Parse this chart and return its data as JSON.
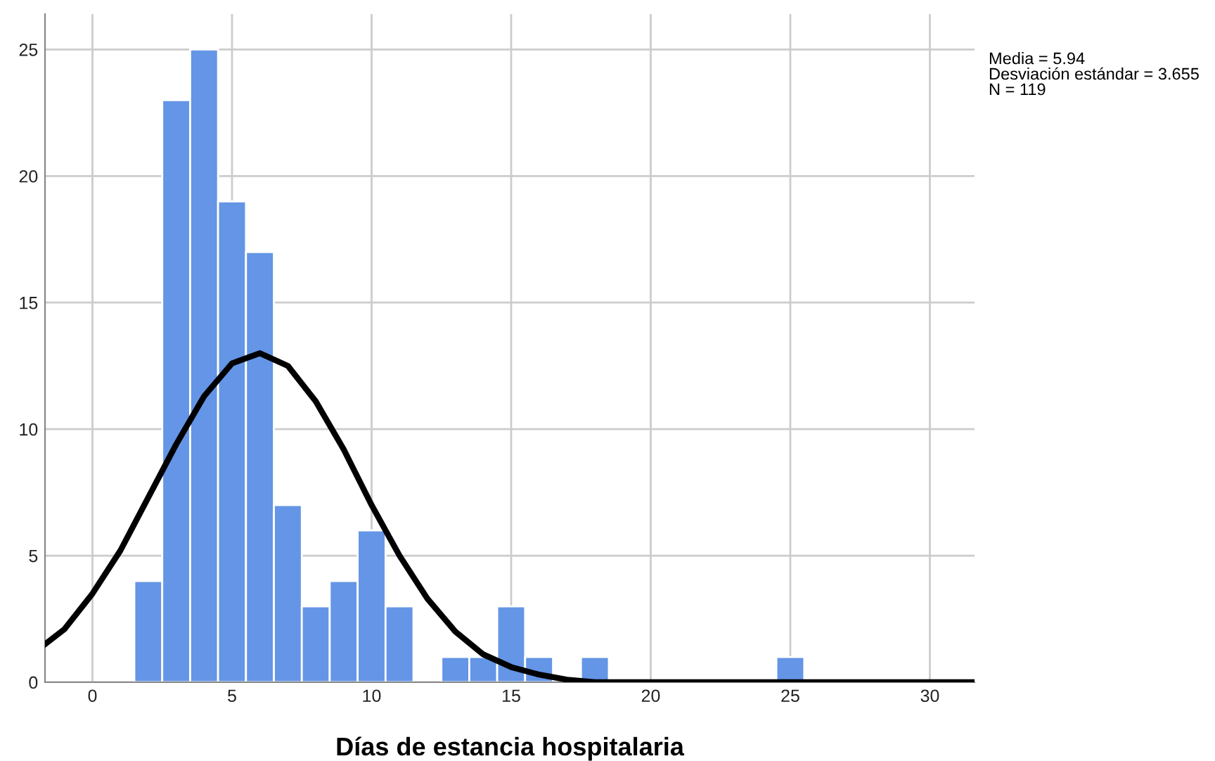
{
  "chart_data": {
    "type": "histogram",
    "xlabel": "Días de estancia hospitalaria",
    "bins": [
      1.5,
      2.5,
      3.5,
      4.5,
      5.5,
      6.5,
      7.5,
      8.5,
      9.5,
      10.5,
      11.5,
      12.5,
      13.5,
      14.5,
      15.5,
      16.5,
      17.5,
      18.5,
      19.5,
      20.5,
      21.5,
      22.5,
      23.5,
      24.5,
      25.5
    ],
    "values": [
      4,
      23,
      25,
      19,
      17,
      7,
      3,
      4,
      6,
      3,
      0,
      1,
      1,
      3,
      1,
      0,
      1,
      0,
      0,
      0,
      0,
      0,
      0,
      1
    ],
    "color": "#6495e6",
    "series": [
      {
        "type": "line",
        "color": "#000000",
        "x": [
          -1.7,
          -1,
          0,
          1,
          2,
          3,
          4,
          5,
          6,
          7,
          8,
          9,
          10,
          11,
          12,
          13,
          14,
          15,
          16,
          17,
          18,
          20,
          25,
          31.6
        ],
        "values": [
          1.5,
          2.1,
          3.5,
          5.2,
          7.3,
          9.4,
          11.3,
          12.6,
          13.0,
          12.5,
          11.1,
          9.2,
          7.0,
          5.0,
          3.3,
          2.0,
          1.1,
          0.6,
          0.3,
          0.1,
          0.0,
          0.0,
          0.0,
          0.0
        ]
      }
    ],
    "xlim": [
      -1.7,
      31.6
    ],
    "ylim": [
      0,
      26.4
    ],
    "xticks": [
      0,
      5,
      10,
      15,
      20,
      25,
      30
    ],
    "yticks": [
      0,
      5,
      10,
      15,
      20,
      25
    ],
    "grid": true,
    "annotations": [
      "Media = 5.94",
      "Desviación estándar = 3.655",
      "N = 119"
    ]
  }
}
